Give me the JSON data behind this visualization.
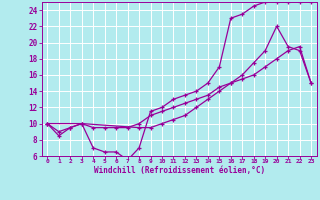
{
  "xlabel": "Windchill (Refroidissement éolien,°C)",
  "background_color": "#b2ebee",
  "grid_color": "#c8e8eb",
  "line_color": "#990099",
  "xlim": [
    -0.5,
    23.5
  ],
  "ylim": [
    6,
    25
  ],
  "xticks": [
    0,
    1,
    2,
    3,
    4,
    5,
    6,
    7,
    8,
    9,
    10,
    11,
    12,
    13,
    14,
    15,
    16,
    17,
    18,
    19,
    20,
    21,
    22,
    23
  ],
  "yticks": [
    6,
    8,
    10,
    12,
    14,
    16,
    18,
    20,
    22,
    24
  ],
  "series1_x": [
    0,
    1,
    2,
    3,
    4,
    5,
    6,
    7,
    8,
    9,
    10,
    11,
    12,
    13,
    14,
    15,
    16,
    17,
    18,
    19,
    20,
    21,
    22,
    23
  ],
  "series1_y": [
    10,
    8.5,
    9.5,
    10,
    7,
    6.5,
    6.5,
    5.5,
    7,
    11.5,
    12,
    13,
    13.5,
    14,
    15,
    17,
    23,
    23.5,
    24.5,
    25,
    25,
    25,
    25,
    25
  ],
  "series2_x": [
    0,
    3,
    8,
    9,
    10,
    11,
    12,
    13,
    14,
    15,
    16,
    17,
    18,
    19,
    20,
    21,
    22,
    23
  ],
  "series2_y": [
    10,
    10,
    9.5,
    9.5,
    10,
    10.5,
    11,
    12,
    13,
    14,
    15,
    16,
    17.5,
    19,
    22,
    19.5,
    19,
    15
  ],
  "series3_x": [
    0,
    1,
    2,
    3,
    4,
    5,
    6,
    7,
    8,
    9,
    10,
    11,
    12,
    13,
    14,
    15,
    16,
    17,
    18,
    19,
    20,
    21,
    22,
    23
  ],
  "series3_y": [
    10,
    9,
    9.5,
    10,
    9.5,
    9.5,
    9.5,
    9.5,
    10,
    11,
    11.5,
    12,
    12.5,
    13,
    13.5,
    14.5,
    15,
    15.5,
    16,
    17,
    18,
    19,
    19.5,
    15
  ]
}
